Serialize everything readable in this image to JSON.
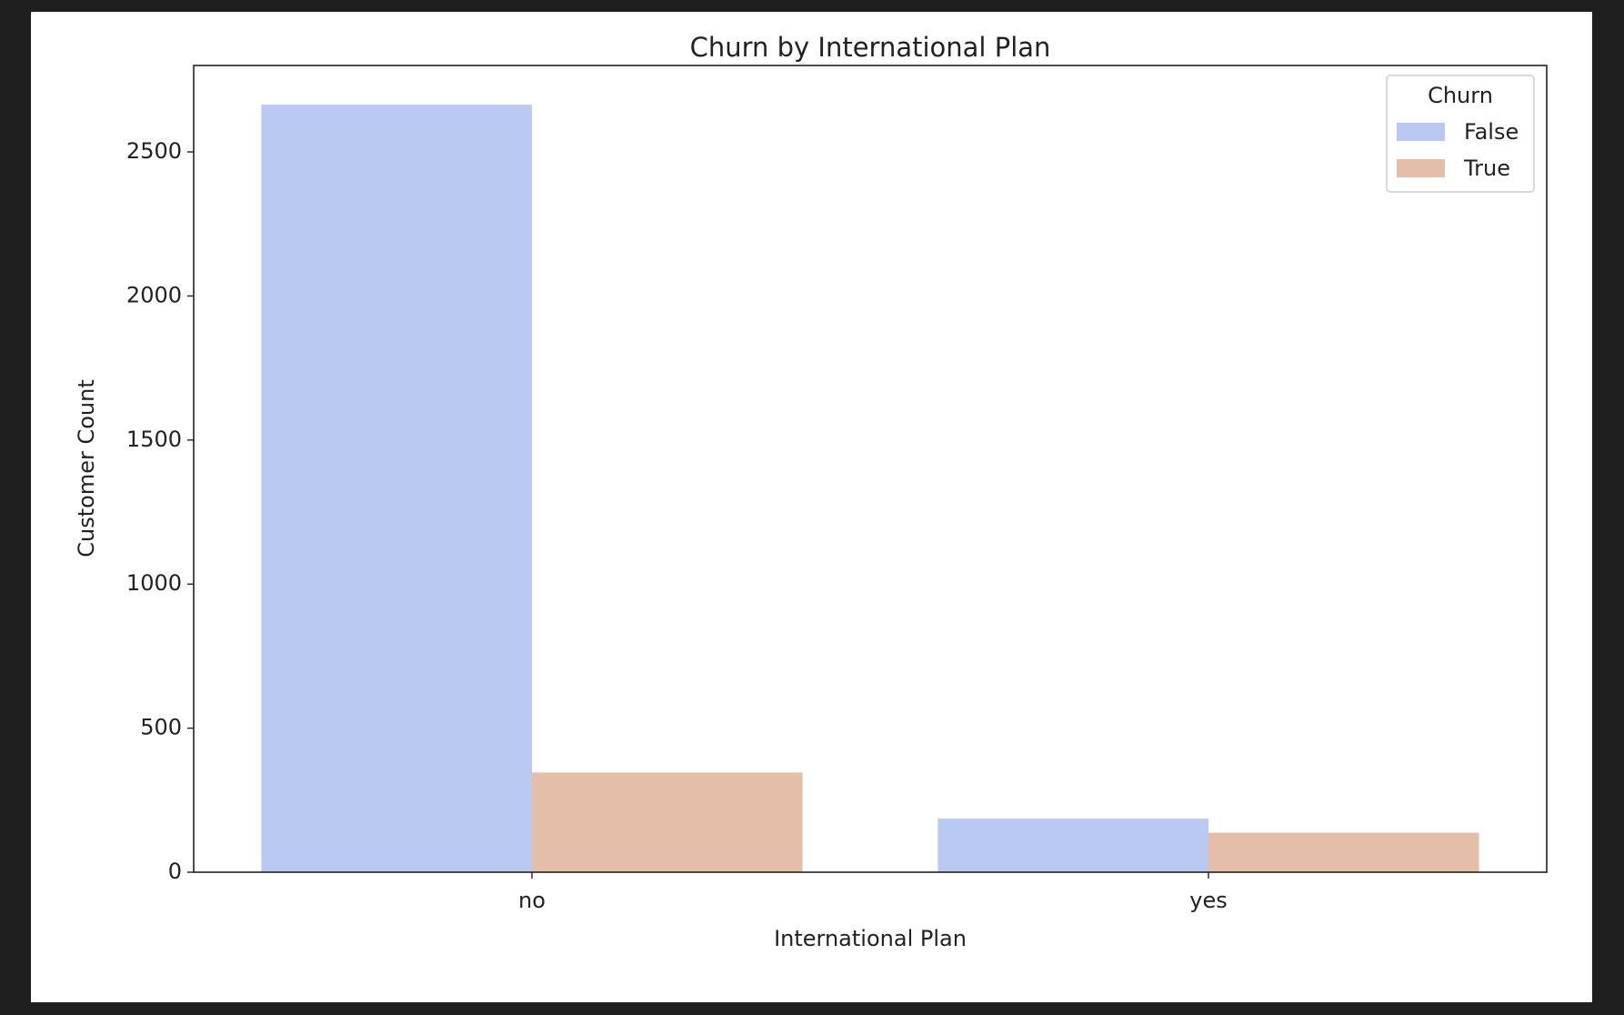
{
  "chart_data": {
    "type": "bar",
    "title": "Churn by International Plan",
    "xlabel": "International Plan",
    "ylabel": "Customer Count",
    "categories": [
      "no",
      "yes"
    ],
    "series": [
      {
        "name": "False",
        "values": [
          2664,
          186
        ],
        "color": "#b9c9f1"
      },
      {
        "name": "True",
        "values": [
          346,
          137
        ],
        "color": "#e4bea9"
      }
    ],
    "ylim": [
      0,
      2800
    ],
    "yticks": [
      0,
      500,
      1000,
      1500,
      2000,
      2500
    ],
    "legend": {
      "title": "Churn",
      "placement": "top-right"
    },
    "grid": false
  }
}
